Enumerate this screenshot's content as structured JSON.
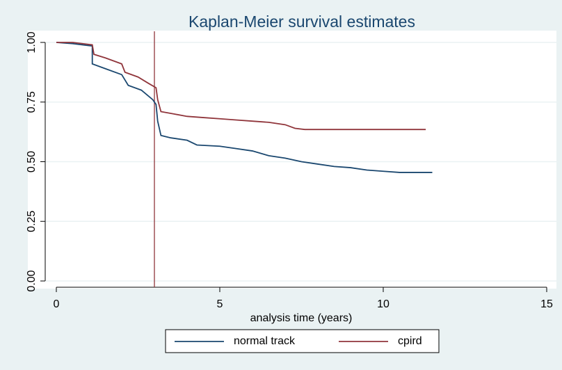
{
  "chart_data": {
    "type": "line",
    "title": "Kaplan-Meier survival estimates",
    "xlabel": "analysis time (years)",
    "xlim": [
      0,
      15
    ],
    "xticks": [
      0,
      5,
      10,
      15
    ],
    "ylim": [
      0,
      1
    ],
    "yticks": [
      {
        "value": 0,
        "label": "0.00"
      },
      0.25,
      {
        "value": 0.5,
        "label": "0.50"
      },
      0.75,
      {
        "value": 1,
        "label": "1.00"
      }
    ],
    "grid": true,
    "xline": 3,
    "xline_color": "#90353b",
    "legend": "bottom",
    "series": [
      {
        "name": "normal track",
        "color": "#1a476f",
        "x": [
          0,
          0.5,
          1.1,
          1.1,
          1.5,
          2.0,
          2.2,
          2.6,
          2.95,
          3.05,
          3.1,
          3.2,
          3.5,
          4.0,
          4.3,
          5.0,
          5.5,
          6.0,
          6.5,
          7.0,
          7.5,
          8.0,
          8.5,
          9.0,
          9.5,
          10.0,
          10.5,
          11.5
        ],
        "values": [
          1.0,
          0.995,
          0.985,
          0.91,
          0.89,
          0.865,
          0.82,
          0.8,
          0.76,
          0.74,
          0.67,
          0.61,
          0.6,
          0.59,
          0.57,
          0.565,
          0.555,
          0.545,
          0.525,
          0.515,
          0.5,
          0.49,
          0.48,
          0.475,
          0.465,
          0.46,
          0.455,
          0.455
        ]
      },
      {
        "name": "cpird",
        "color": "#90353b",
        "x": [
          0,
          0.5,
          1.1,
          1.15,
          1.5,
          2.0,
          2.1,
          2.5,
          2.8,
          3.05,
          3.1,
          3.2,
          3.6,
          4.0,
          4.5,
          5.0,
          5.5,
          6.0,
          6.5,
          7.0,
          7.3,
          7.6,
          11.3
        ],
        "values": [
          1.0,
          1.0,
          0.99,
          0.95,
          0.935,
          0.91,
          0.875,
          0.855,
          0.83,
          0.81,
          0.76,
          0.71,
          0.7,
          0.69,
          0.685,
          0.68,
          0.675,
          0.67,
          0.665,
          0.655,
          0.64,
          0.635,
          0.635
        ]
      }
    ]
  }
}
